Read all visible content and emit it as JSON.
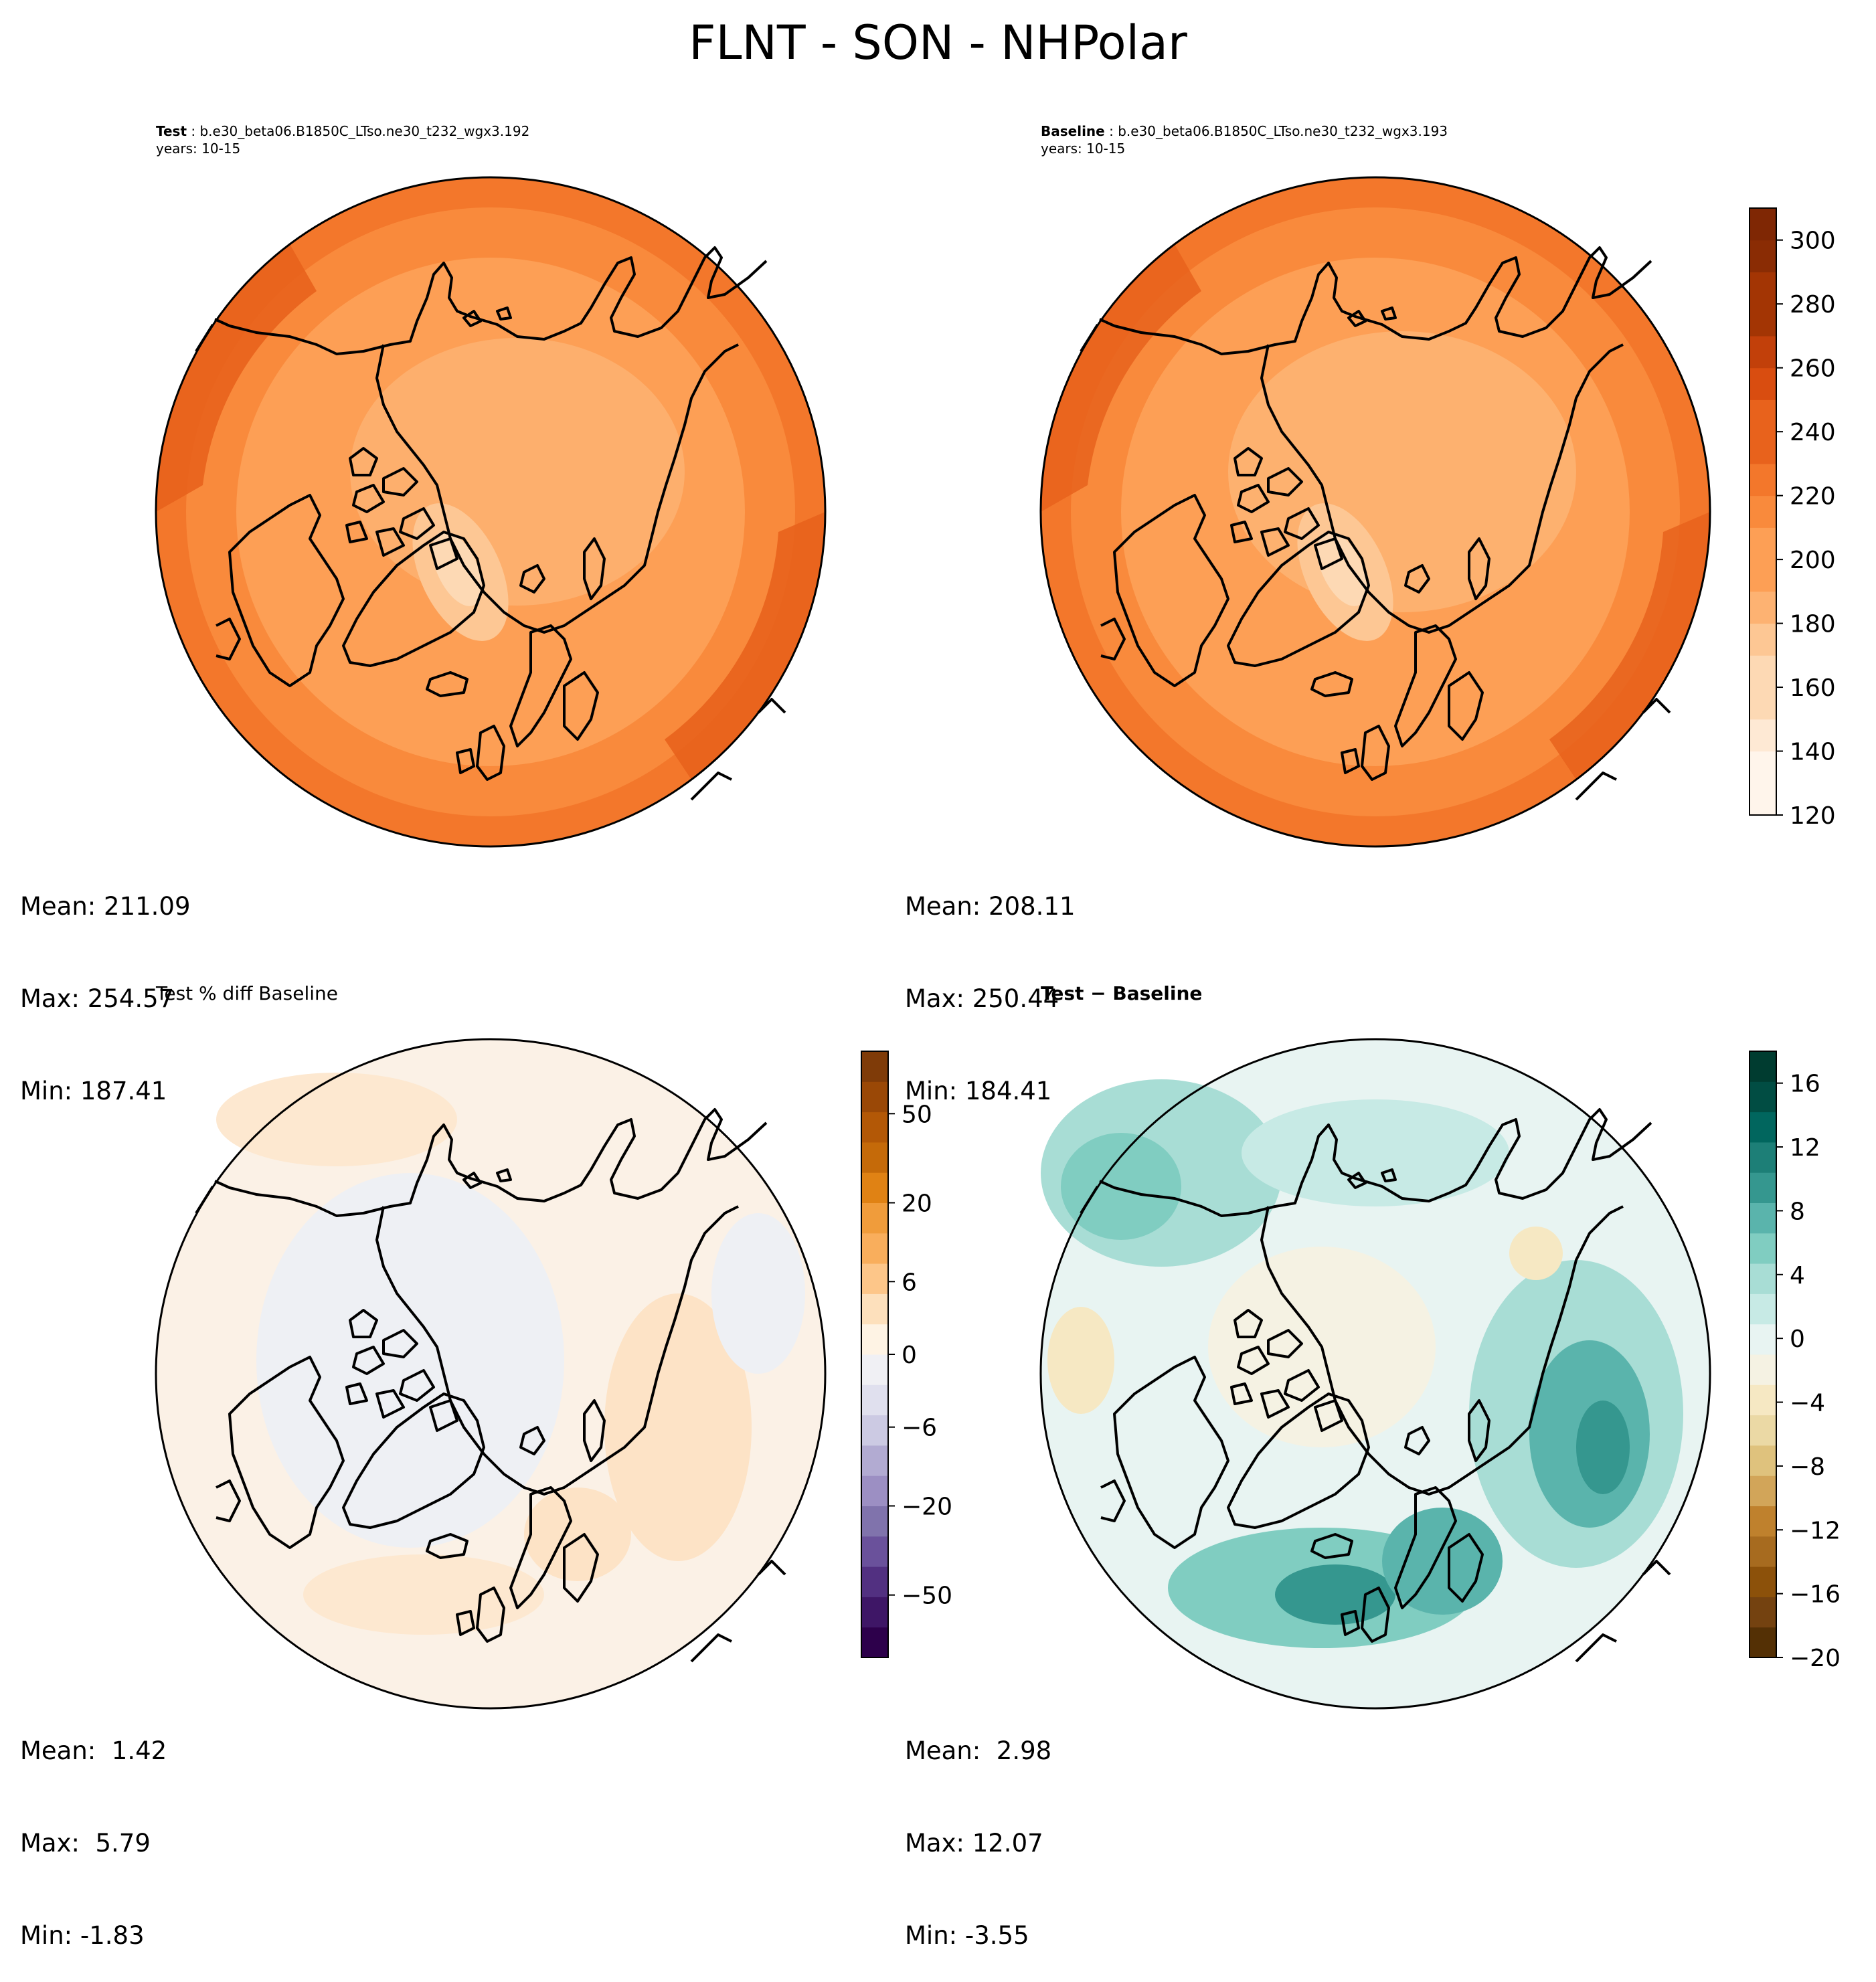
{
  "suptitle": "FLNT - SON - NHPolar",
  "panels": {
    "test": {
      "title_bold": "Test",
      "title_rest": " : b.e30_beta06.B1850C_LTso.ne30_t232_wgx3.192",
      "years": "years: 10-15",
      "mean": "Mean: 211.09",
      "max": "Max: 254.57",
      "min": "Min: 187.41"
    },
    "baseline": {
      "title_bold": "Baseline",
      "title_rest": " : b.e30_beta06.B1850C_LTso.ne30_t232_wgx3.193",
      "years": "years: 10-15",
      "mean": "Mean: 208.11",
      "max": "Max: 250.44",
      "min": "Min: 184.41"
    },
    "pctdiff": {
      "title": "Test % diff Baseline",
      "mean": "Mean:  1.42",
      "max": "Max:  5.79",
      "min": "Min: -1.83"
    },
    "diff": {
      "title": "Test − Baseline",
      "mean": "Mean:  2.98",
      "max": "Max: 12.07",
      "min": "Min: -3.55"
    }
  },
  "colorbars": {
    "absolute": {
      "colormap": "Oranges",
      "levels": [
        120,
        130,
        140,
        150,
        160,
        170,
        180,
        190,
        200,
        210,
        220,
        230,
        240,
        250,
        260,
        270,
        280,
        290,
        300,
        310
      ],
      "ticks": [
        "120",
        "140",
        "160",
        "180",
        "200",
        "220",
        "240",
        "260",
        "280",
        "300"
      ]
    },
    "pctdiff": {
      "colormap": "PuOr_r",
      "ticks": [
        "−50",
        "−20",
        "−6",
        "0",
        "6",
        "20",
        "50"
      ]
    },
    "diff": {
      "colormap": "BrBG",
      "levels": [
        -20,
        -18,
        -16,
        -14,
        -12,
        -10,
        -8,
        -6,
        -4,
        -2,
        0,
        2,
        4,
        6,
        8,
        10,
        12,
        14,
        16,
        18
      ],
      "ticks": [
        "−20",
        "−16",
        "−12",
        "−8",
        "−4",
        "0",
        "4",
        "8",
        "12",
        "16"
      ]
    }
  },
  "projection": "North Polar Stereographic",
  "colors": {
    "oranges": [
      "#fff5eb",
      "#fee9d4",
      "#fdd9b4",
      "#fdc794",
      "#fdb272",
      "#fd9f55",
      "#f98a3c",
      "#f3772b",
      "#e8621c",
      "#d94d10",
      "#c2400a",
      "#a33504",
      "#8a2c04",
      "#7f2704"
    ],
    "puor": [
      "#2d004b",
      "#3e1666",
      "#523081",
      "#6a519b",
      "#8073ac",
      "#9c8fc3",
      "#b2abd2",
      "#cccae3",
      "#e0e0ee",
      "#f0f0f4",
      "#fef3e4",
      "#fde0bc",
      "#fdc689",
      "#f9ae5c",
      "#f09c3b",
      "#e08214",
      "#c56a09",
      "#b35806",
      "#9a4806",
      "#7f3b08"
    ],
    "brbg": [
      "#543005",
      "#744210",
      "#8c510a",
      "#a76b1f",
      "#bf812d",
      "#d2a559",
      "#dfc27d",
      "#ebd9a5",
      "#f6e8c3",
      "#f5f2e3",
      "#e8f4f2",
      "#c7eae5",
      "#a8ddd5",
      "#80cdc1",
      "#5ab4ac",
      "#35978f",
      "#1d7f77",
      "#01665e",
      "#014d43",
      "#003c30"
    ]
  }
}
